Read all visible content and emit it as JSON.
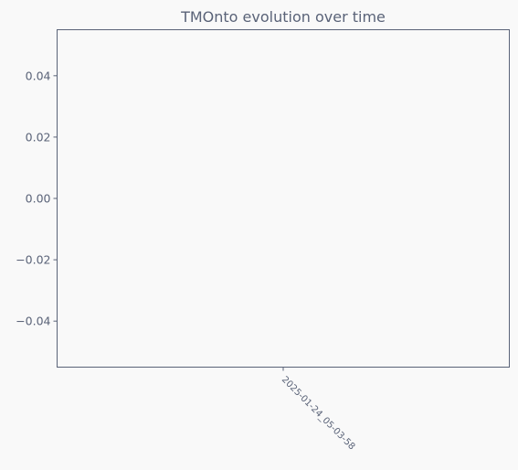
{
  "colors": {
    "background": "#f9f9f9",
    "axis": "#5a6378",
    "text": "#5a6378"
  },
  "chart_data": {
    "type": "line",
    "title": "TMOnto evolution over time",
    "xlabel": "",
    "ylabel": "",
    "x": [
      "2025-01-24_05-03-58"
    ],
    "series": [],
    "ylim": [
      -0.055,
      0.055
    ],
    "y_ticks": [
      0.04,
      0.02,
      0.0,
      -0.02,
      -0.04
    ],
    "y_tick_labels": [
      "0.04",
      "0.02",
      "0.00",
      "−0.02",
      "−0.04"
    ],
    "x_tick_labels": [
      "2025-01-24_05-03-58"
    ],
    "grid": false,
    "legend": "none"
  }
}
